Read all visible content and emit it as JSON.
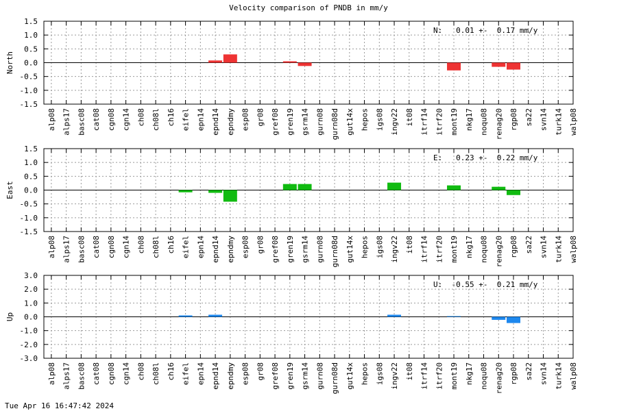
{
  "title": "Velocity comparison of PNDB in mm/y",
  "timestamp": "Tue Apr 16 16:47:42 2024",
  "chart_data": [
    {
      "type": "bar",
      "ylabel": "North",
      "color": "#ee3333",
      "ylim": [
        -1.5,
        1.5
      ],
      "yticks": [
        -1.5,
        -1.0,
        -0.5,
        0.0,
        0.5,
        1.0,
        1.5
      ],
      "ytick_labels": [
        "-1.5",
        "-1.0",
        "-0.5",
        "0.0",
        "0.5",
        "1.0",
        "1.5"
      ],
      "stat_text": "N:   0.01 +-  0.17 mm/y",
      "grid": true,
      "categories": [
        "alp08",
        "alps17",
        "basc08",
        "cat08",
        "cgn08",
        "cgn14",
        "ch08",
        "ch08l",
        "ch16",
        "eifel",
        "epn14",
        "epnd14",
        "epndmy",
        "esp08",
        "gr08",
        "gref08",
        "gren19",
        "gsrm14",
        "gurn08",
        "gurn08d",
        "gut14x",
        "hepos",
        "igs08",
        "ingv22",
        "it08",
        "itrf14",
        "itrf20",
        "mont19",
        "nkg17",
        "noqu08",
        "renag20",
        "rgp08",
        "sa22",
        "svn14",
        "turk14",
        "walp08"
      ],
      "values": [
        null,
        null,
        null,
        null,
        null,
        null,
        null,
        null,
        null,
        null,
        null,
        0.08,
        0.3,
        null,
        null,
        null,
        0.05,
        -0.12,
        null,
        null,
        null,
        null,
        null,
        null,
        null,
        null,
        null,
        -0.28,
        null,
        null,
        -0.15,
        -0.25,
        null,
        null,
        null,
        null
      ]
    },
    {
      "type": "bar",
      "ylabel": "East",
      "color": "#11bb11",
      "ylim": [
        -1.5,
        1.5
      ],
      "yticks": [
        -1.5,
        -1.0,
        -0.5,
        0.0,
        0.5,
        1.0,
        1.5
      ],
      "ytick_labels": [
        "-1.5",
        "-1.0",
        "-0.5",
        "0.0",
        "0.5",
        "1.0",
        "1.5"
      ],
      "stat_text": "E:   0.23 +-  0.22 mm/y",
      "grid": true,
      "categories": [
        "alp08",
        "alps17",
        "basc08",
        "cat08",
        "cgn08",
        "cgn14",
        "ch08",
        "ch08l",
        "ch16",
        "eifel",
        "epn14",
        "epnd14",
        "epndmy",
        "esp08",
        "gr08",
        "gref08",
        "gren19",
        "gsrm14",
        "gurn08",
        "gurn08d",
        "gut14x",
        "hepos",
        "igs08",
        "ingv22",
        "it08",
        "itrf14",
        "itrf20",
        "mont19",
        "nkg17",
        "noqu08",
        "renag20",
        "rgp08",
        "sa22",
        "svn14",
        "turk14",
        "walp08"
      ],
      "values": [
        null,
        null,
        null,
        null,
        null,
        null,
        null,
        null,
        null,
        -0.08,
        null,
        -0.1,
        -0.42,
        null,
        null,
        null,
        0.22,
        0.22,
        null,
        null,
        null,
        null,
        null,
        0.27,
        null,
        null,
        null,
        0.17,
        null,
        null,
        0.12,
        -0.18,
        null,
        null,
        null,
        null
      ]
    },
    {
      "type": "bar",
      "ylabel": "Up",
      "color": "#1e88ee",
      "ylim": [
        -3.0,
        3.0
      ],
      "yticks": [
        -3.0,
        -2.0,
        -1.0,
        0.0,
        1.0,
        2.0,
        3.0
      ],
      "ytick_labels": [
        "-3.0",
        "-2.0",
        "-1.0",
        "0.0",
        "1.0",
        "2.0",
        "3.0"
      ],
      "stat_text": "U:  -0.55 +-  0.21 mm/y",
      "grid": true,
      "categories": [
        "alp08",
        "alps17",
        "basc08",
        "cat08",
        "cgn08",
        "cgn14",
        "ch08",
        "ch08l",
        "ch16",
        "eifel",
        "epn14",
        "epnd14",
        "epndmy",
        "esp08",
        "gr08",
        "gref08",
        "gren19",
        "gsrm14",
        "gurn08",
        "gurn08d",
        "gut14x",
        "hepos",
        "igs08",
        "ingv22",
        "it08",
        "itrf14",
        "itrf20",
        "mont19",
        "nkg17",
        "noqu08",
        "renag20",
        "rgp08",
        "sa22",
        "svn14",
        "turk14",
        "walp08"
      ],
      "values": [
        null,
        null,
        null,
        null,
        null,
        null,
        null,
        null,
        null,
        0.1,
        null,
        0.15,
        null,
        null,
        null,
        null,
        null,
        null,
        null,
        null,
        null,
        null,
        null,
        0.15,
        null,
        null,
        null,
        0.05,
        null,
        null,
        -0.22,
        -0.45,
        null,
        null,
        null,
        null
      ]
    }
  ]
}
